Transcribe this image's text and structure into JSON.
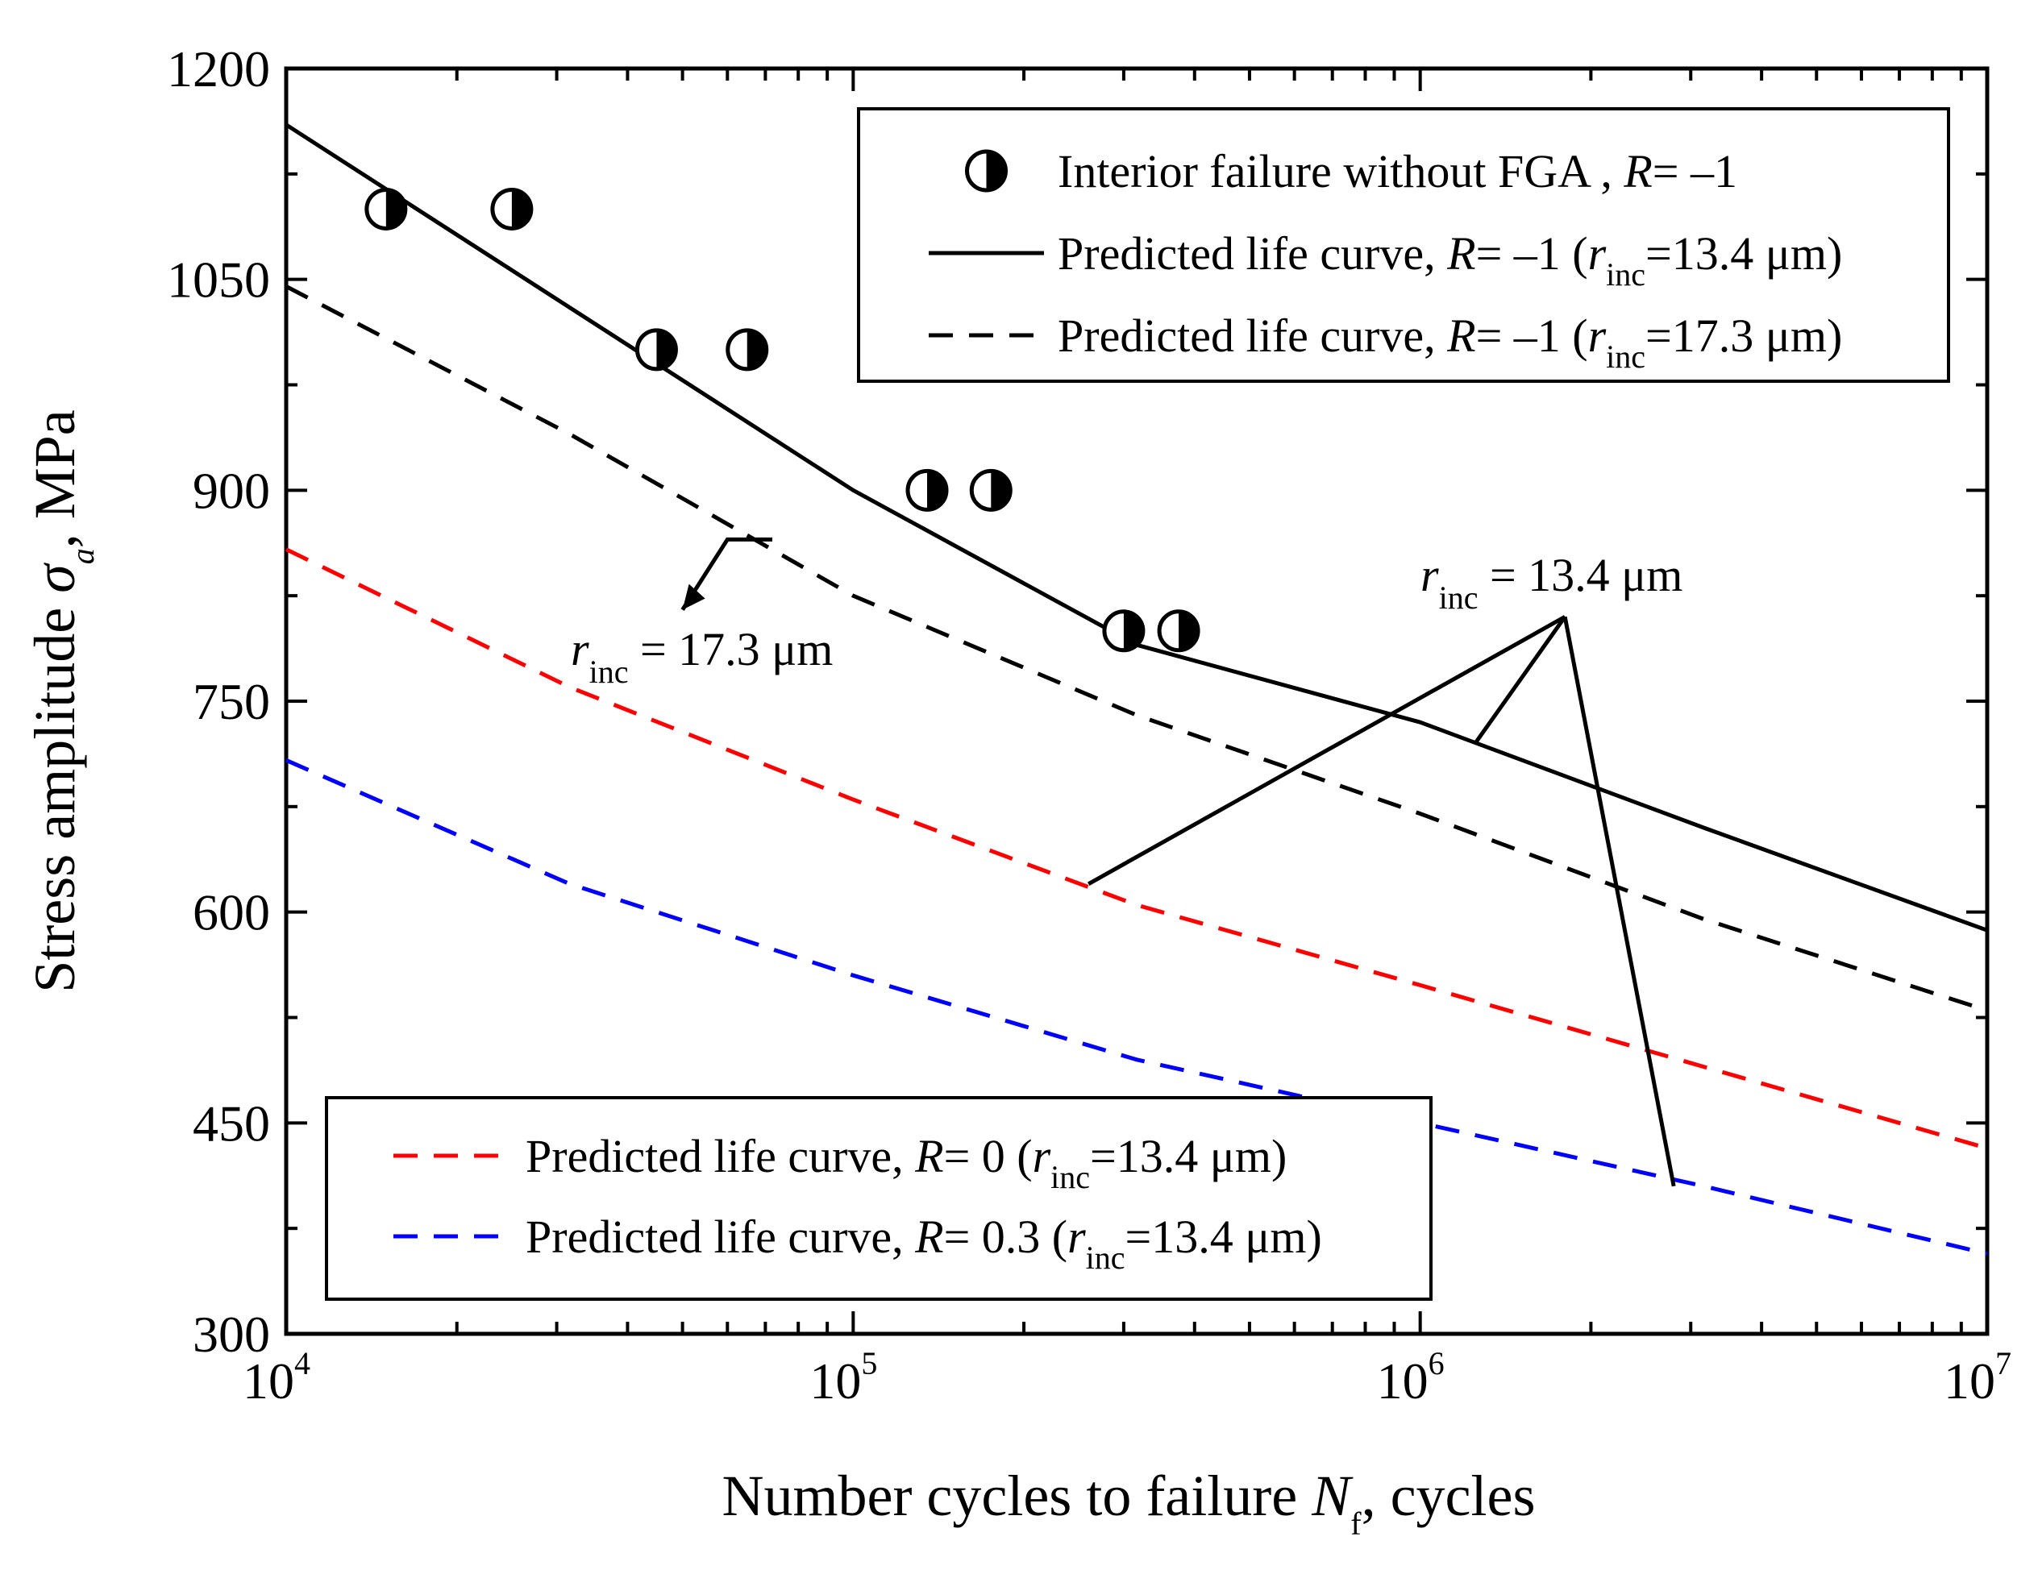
{
  "chart_data": {
    "type": "line",
    "xscale": "log",
    "xlim": [
      10000,
      10000000
    ],
    "ylim": [
      300,
      1200
    ],
    "xlabel": {
      "main": "Number cycles to failure ",
      "var": "N",
      "sub": "f",
      "tail": ", cycles"
    },
    "ylabel": {
      "main": "Stress amplitude ",
      "var": "σ",
      "sub": "a",
      "tail": ", MPa"
    },
    "yticks": [
      300,
      450,
      600,
      750,
      900,
      1050,
      1200
    ],
    "xticks": [
      {
        "value": 10000,
        "base": "10",
        "exp": "4"
      },
      {
        "value": 100000,
        "base": "10",
        "exp": "5"
      },
      {
        "value": 1000000,
        "base": "10",
        "exp": "6"
      },
      {
        "value": 10000000,
        "base": "10",
        "exp": "7"
      }
    ],
    "scatter": {
      "name": "Interior failure without FGA",
      "points": [
        {
          "x": 15000,
          "y": 1100
        },
        {
          "x": 25000,
          "y": 1100
        },
        {
          "x": 45000,
          "y": 1000
        },
        {
          "x": 65000,
          "y": 1000
        },
        {
          "x": 135000,
          "y": 900
        },
        {
          "x": 175000,
          "y": 900
        },
        {
          "x": 300000,
          "y": 800
        },
        {
          "x": 375000,
          "y": 800
        }
      ]
    },
    "series": [
      {
        "id": "r-1-13",
        "name": "Predicted life curve, R= -1 (rinc=13.4 μm)",
        "color": "#000000",
        "dash": "solid",
        "x": [
          10000,
          31623,
          100000,
          316228,
          1000000,
          3162278,
          10000000
        ],
        "y": [
          1160,
          1030,
          900,
          790,
          735,
          660,
          587
        ]
      },
      {
        "id": "r-1-17",
        "name": "Predicted life curve, R= -1 (rinc=17.3 μm)",
        "color": "#000000",
        "dash": "dashed",
        "x": [
          10000,
          31623,
          100000,
          316228,
          1000000,
          3162278,
          10000000
        ],
        "y": [
          1045,
          940,
          825,
          740,
          670,
          595,
          530
        ]
      },
      {
        "id": "r0-13",
        "name": "Predicted life curve, R= 0 (rinc=13.4 μm)",
        "color": "#ff0000",
        "dash": "dashed",
        "x": [
          10000,
          31623,
          100000,
          316228,
          1000000,
          3162278,
          10000000
        ],
        "y": [
          858,
          760,
          680,
          605,
          548,
          490,
          432
        ]
      },
      {
        "id": "r03-13",
        "name": "Predicted life curve, R= 0.3 (rinc=13.4 μm)",
        "color": "#0000ff",
        "dash": "dashed",
        "x": [
          10000,
          31623,
          100000,
          316228,
          1000000,
          3162278,
          10000000
        ],
        "y": [
          708,
          620,
          555,
          495,
          450,
          405,
          357
        ]
      }
    ],
    "legend_top": {
      "placement": "top-right",
      "entries": [
        {
          "marker": "half-circle",
          "text": "Interior failure without FGA , ",
          "rvar": "R",
          "rval": "= –1",
          "rinc": null
        },
        {
          "marker": "solid",
          "text": "Predicted life curve, ",
          "rvar": "R",
          "rval": "= –1 (",
          "rinc": "=13.4 μm)"
        },
        {
          "marker": "dashed",
          "text": "Predicted life curve, ",
          "rvar": "R",
          "rval": "= –1 (",
          "rinc": "=17.3 μm)"
        }
      ]
    },
    "legend_bottom": {
      "placement": "bottom-left",
      "entries": [
        {
          "marker": "dashed",
          "color": "#ff0000",
          "text": "Predicted life curve, ",
          "rvar": "R",
          "rval": "= 0 (",
          "rinc": "=13.4 μm)"
        },
        {
          "marker": "dashed",
          "color": "#0000ff",
          "text": "Predicted life curve, ",
          "rvar": "R",
          "rval": "= 0.3 (",
          "rinc": "=13.4 μm)"
        }
      ]
    },
    "annotations": {
      "r": "r",
      "inc": "inc",
      "a1_value": " = 13.4 μm",
      "a2_value": " = 17.3 μm"
    }
  }
}
